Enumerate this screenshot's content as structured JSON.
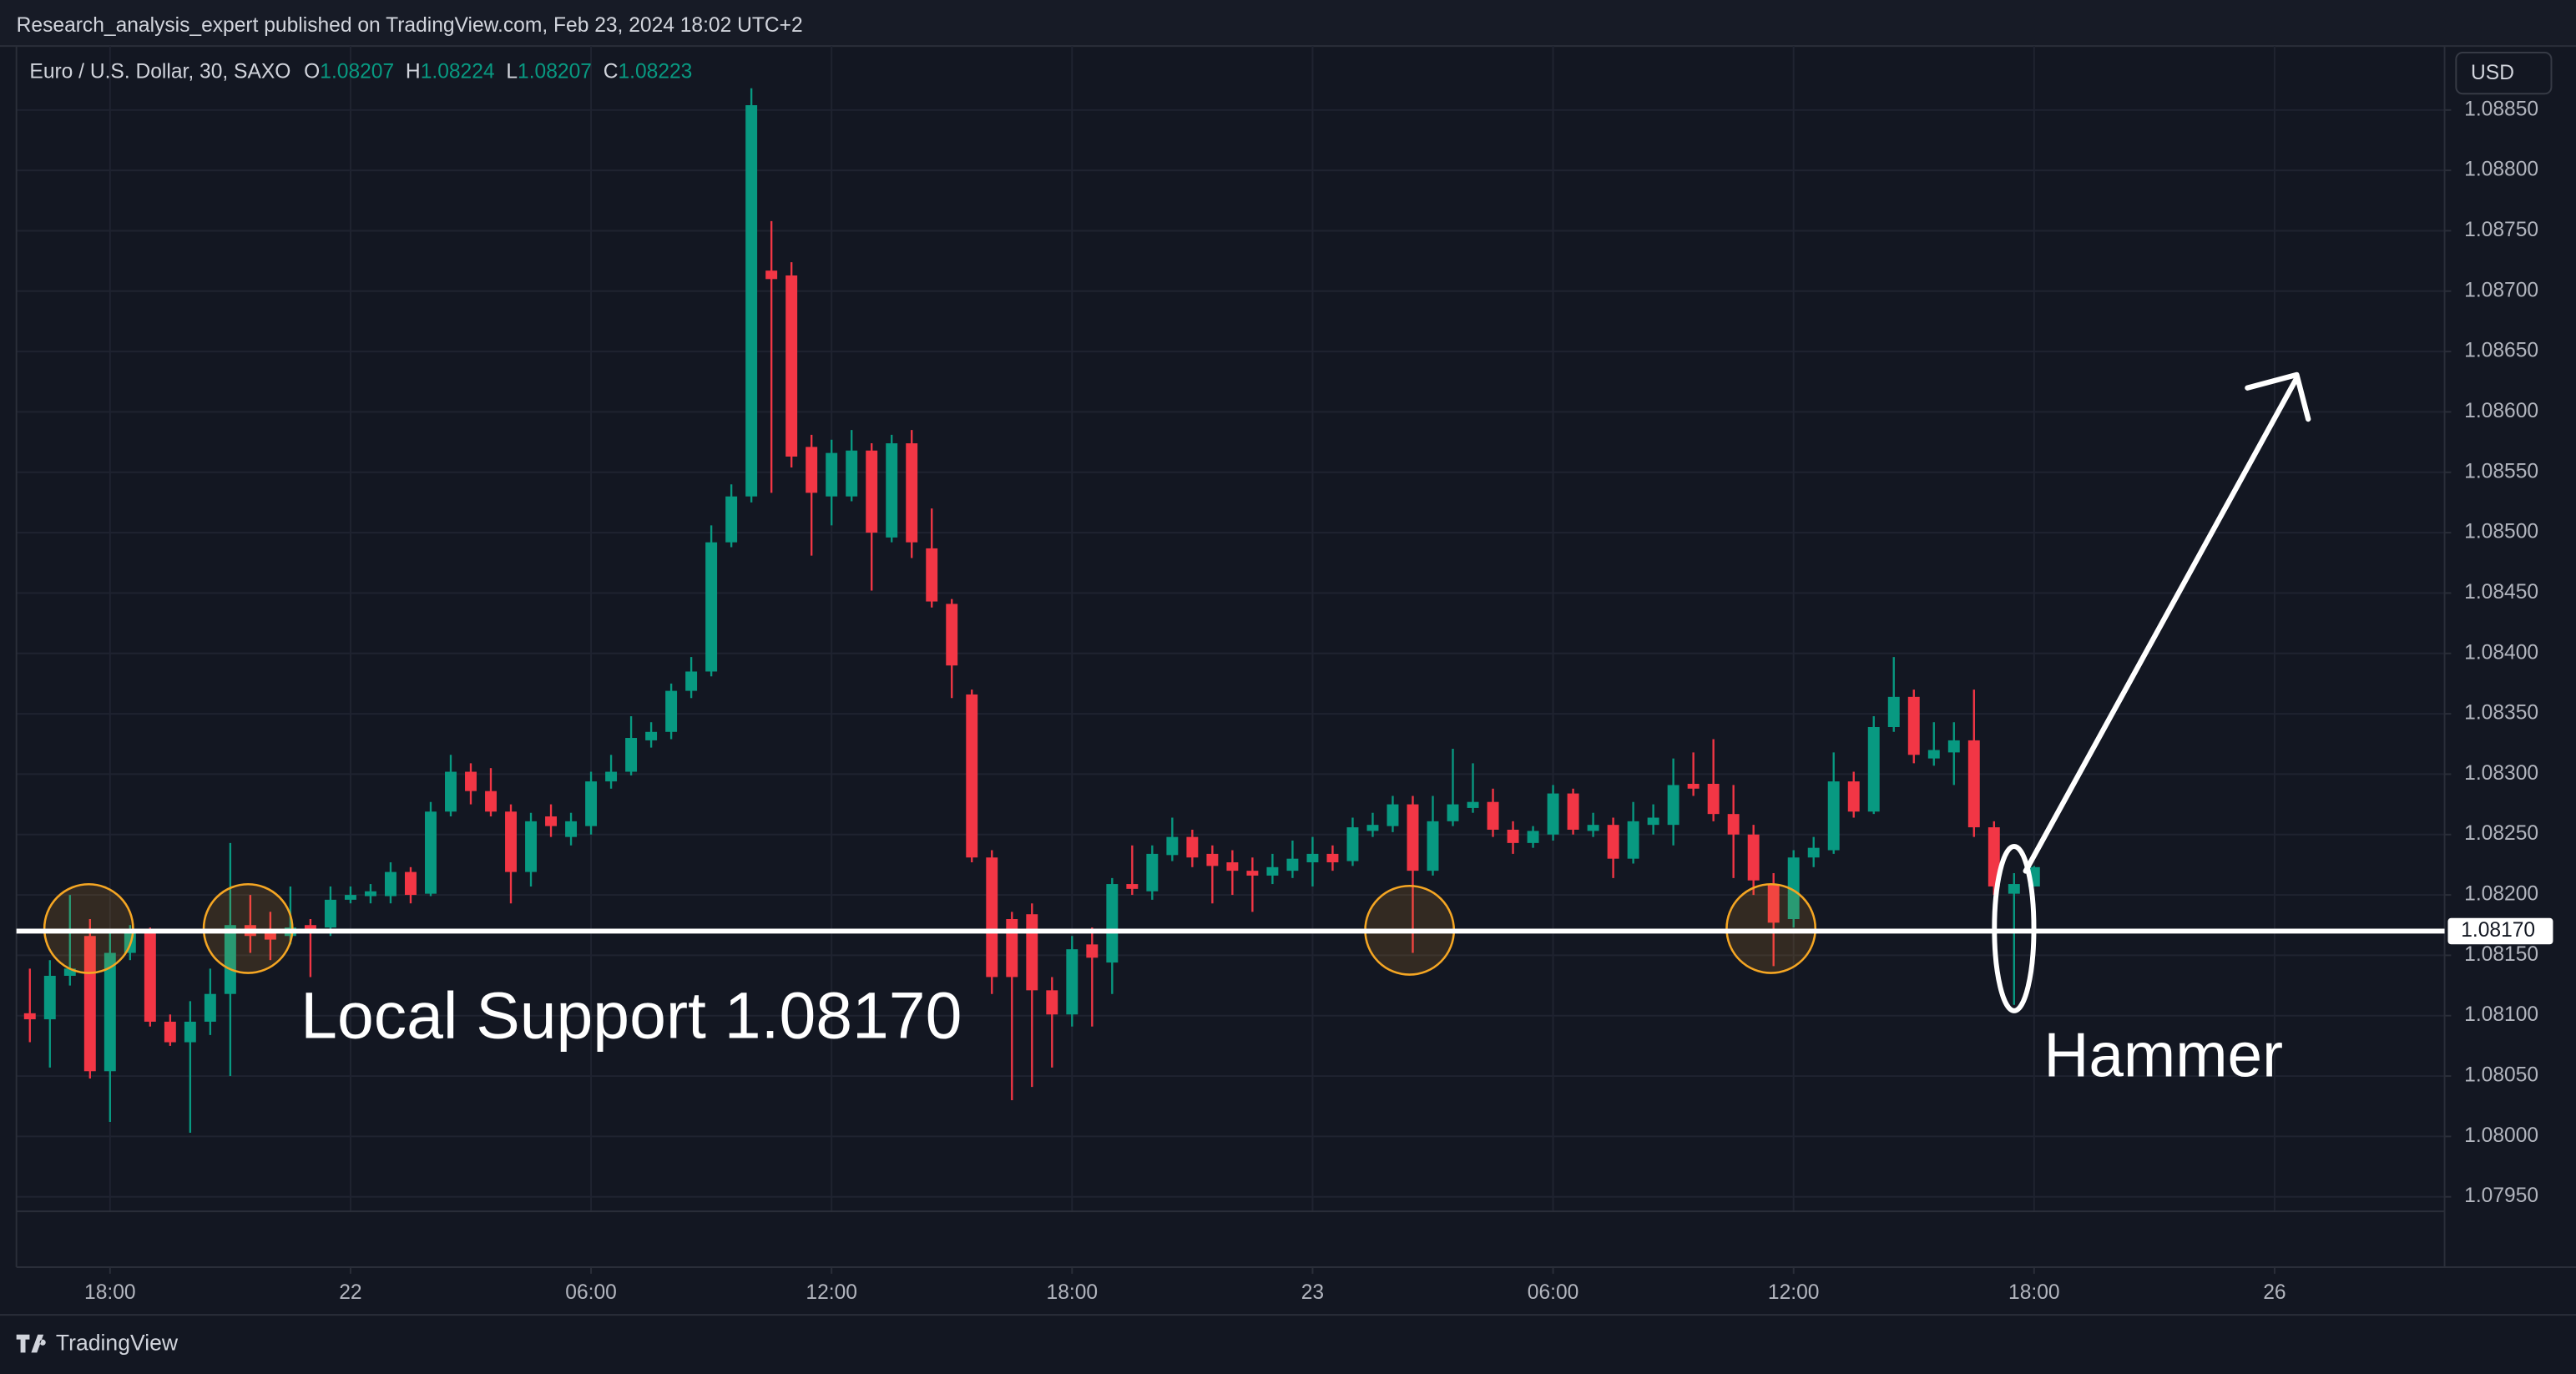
{
  "header": {
    "published": "Research_analysis_expert published on TradingView.com, Feb 23, 2024 18:02 UTC+2"
  },
  "footer": {
    "brand": "TradingView"
  },
  "chart_data": {
    "type": "candlestick",
    "symbol": "Euro / U.S. Dollar, 30, SAXO",
    "ohlc_labels": [
      "O",
      "H",
      "L",
      "C"
    ],
    "currency": "USD",
    "up_color": "#089981",
    "down_color": "#f23645",
    "grid": true,
    "open": [
      1.08102,
      1.08097,
      1.08133,
      1.08166,
      1.08054,
      1.08152,
      1.08169,
      1.08095,
      1.08078,
      1.08095,
      1.08118,
      1.08175,
      1.08169,
      1.08166,
      1.08175,
      1.08173,
      1.08196,
      1.08199,
      1.08199,
      1.08219,
      1.08201,
      1.08269,
      1.08302,
      1.08286,
      1.08269,
      1.08219,
      1.08265,
      1.08248,
      1.08257,
      1.08294,
      1.08302,
      1.08328,
      1.08335,
      1.08369,
      1.08385,
      1.08492,
      1.0853,
      1.08717,
      1.08713,
      1.08571,
      1.0853,
      1.0853,
      1.08568,
      1.08496,
      1.08574,
      1.08487,
      1.08441,
      1.08366,
      1.08231,
      1.0818,
      1.08184,
      1.08121,
      1.08101,
      1.08159,
      1.08144,
      1.08209,
      1.08203,
      1.08233,
      1.08248,
      1.08234,
      1.08227,
      1.0822,
      1.08216,
      1.0822,
      1.08227,
      1.08234,
      1.08228,
      1.08253,
      1.08257,
      1.08275,
      1.0822,
      1.08261,
      1.08272,
      1.08277,
      1.08254,
      1.08243,
      1.0825,
      1.08284,
      1.08253,
      1.08258,
      1.0823,
      1.08258,
      1.08258,
      1.08292,
      1.08292,
      1.08267,
      1.0825,
      1.08209,
      1.0818,
      1.08231,
      1.08237,
      1.08294,
      1.08269,
      1.08339,
      1.08364,
      1.08313,
      1.08318,
      1.08328,
      1.08256,
      1.08201,
      1.08207
    ],
    "high": [
      1.08139,
      1.08146,
      1.082,
      1.0818,
      1.08169,
      1.08175,
      1.08173,
      1.08101,
      1.08112,
      1.08139,
      1.08243,
      1.082,
      1.08186,
      1.08207,
      1.0818,
      1.08207,
      1.08207,
      1.08209,
      1.08227,
      1.08223,
      1.08277,
      1.08316,
      1.08309,
      1.08305,
      1.08275,
      1.08268,
      1.08275,
      1.08268,
      1.08302,
      1.08316,
      1.08348,
      1.08343,
      1.08375,
      1.08397,
      1.08506,
      1.0854,
      1.08868,
      1.08758,
      1.08724,
      1.08581,
      1.08577,
      1.08585,
      1.08574,
      1.08581,
      1.08585,
      1.0852,
      1.08445,
      1.0837,
      1.08237,
      1.08186,
      1.08193,
      1.08132,
      1.08166,
      1.08173,
      1.08214,
      1.08241,
      1.08241,
      1.08264,
      1.08254,
      1.08241,
      1.08237,
      1.08231,
      1.08234,
      1.08245,
      1.08248,
      1.08241,
      1.08264,
      1.08268,
      1.08282,
      1.08282,
      1.08282,
      1.08321,
      1.08309,
      1.08288,
      1.08261,
      1.08257,
      1.08291,
      1.08288,
      1.08268,
      1.08264,
      1.08277,
      1.08275,
      1.08313,
      1.08318,
      1.08329,
      1.08291,
      1.08258,
      1.08218,
      1.08237,
      1.08248,
      1.08318,
      1.08302,
      1.08348,
      1.08397,
      1.0837,
      1.08343,
      1.08343,
      1.0837,
      1.08261,
      1.08218,
      1.08224
    ],
    "low": [
      1.08078,
      1.08057,
      1.08125,
      1.08048,
      1.08012,
      1.08146,
      1.08091,
      1.08075,
      1.08003,
      1.08084,
      1.0805,
      1.08152,
      1.08146,
      1.08159,
      1.08132,
      1.08166,
      1.08193,
      1.08193,
      1.08193,
      1.08193,
      1.08199,
      1.08265,
      1.08275,
      1.08265,
      1.08193,
      1.08207,
      1.08248,
      1.08241,
      1.0825,
      1.08288,
      1.08299,
      1.08322,
      1.08329,
      1.08363,
      1.08381,
      1.08488,
      1.08525,
      1.08533,
      1.08554,
      1.08481,
      1.08506,
      1.08526,
      1.08452,
      1.08492,
      1.08479,
      1.08438,
      1.08363,
      1.08227,
      1.08118,
      1.0803,
      1.08041,
      1.08057,
      1.08091,
      1.08091,
      1.08118,
      1.082,
      1.08196,
      1.08228,
      1.08223,
      1.08193,
      1.082,
      1.08186,
      1.08209,
      1.08214,
      1.08207,
      1.0822,
      1.08224,
      1.08248,
      1.08252,
      1.08152,
      1.08216,
      1.08257,
      1.08268,
      1.08248,
      1.08234,
      1.08239,
      1.08245,
      1.0825,
      1.08248,
      1.08214,
      1.08226,
      1.0825,
      1.08241,
      1.08282,
      1.08261,
      1.08214,
      1.082,
      1.08141,
      1.08173,
      1.08223,
      1.08234,
      1.08264,
      1.08267,
      1.08335,
      1.08309,
      1.08307,
      1.08291,
      1.08248,
      1.082,
      1.08109,
      1.08207
    ],
    "close": [
      1.08097,
      1.08133,
      1.08139,
      1.08054,
      1.08152,
      1.08169,
      1.08095,
      1.08078,
      1.08095,
      1.08118,
      1.08175,
      1.08166,
      1.08163,
      1.08173,
      1.08169,
      1.08196,
      1.082,
      1.08203,
      1.08219,
      1.082,
      1.08269,
      1.08302,
      1.08286,
      1.08269,
      1.08219,
      1.08261,
      1.08257,
      1.08261,
      1.08294,
      1.08302,
      1.0833,
      1.08335,
      1.08369,
      1.08385,
      1.08492,
      1.0853,
      1.08854,
      1.0871,
      1.08563,
      1.08533,
      1.08566,
      1.08568,
      1.085,
      1.08574,
      1.08492,
      1.08443,
      1.0839,
      1.08231,
      1.08132,
      1.08132,
      1.08121,
      1.08101,
      1.08155,
      1.08148,
      1.08209,
      1.08205,
      1.08234,
      1.08248,
      1.08231,
      1.08224,
      1.0822,
      1.08216,
      1.08223,
      1.0823,
      1.08234,
      1.08227,
      1.08256,
      1.08258,
      1.08275,
      1.0822,
      1.08261,
      1.08275,
      1.08277,
      1.08254,
      1.08243,
      1.08253,
      1.08284,
      1.08254,
      1.08258,
      1.0823,
      1.08261,
      1.08264,
      1.08291,
      1.08288,
      1.08267,
      1.0825,
      1.08212,
      1.08177,
      1.08231,
      1.08239,
      1.08294,
      1.08269,
      1.08339,
      1.08364,
      1.08316,
      1.0832,
      1.08328,
      1.08256,
      1.08207,
      1.08209,
      1.08223
    ],
    "xlim": [
      -0.67,
      120.48
    ],
    "xticks": [
      {
        "value": 4,
        "label": "18:00"
      },
      {
        "value": 16,
        "label": "22"
      },
      {
        "value": 28,
        "label": "06:00"
      },
      {
        "value": 40,
        "label": "12:00"
      },
      {
        "value": 52,
        "label": "18:00"
      },
      {
        "value": 64,
        "label": "23"
      },
      {
        "value": 76,
        "label": "06:00"
      },
      {
        "value": 88,
        "label": "12:00"
      },
      {
        "value": 100,
        "label": "18:00"
      },
      {
        "value": 112,
        "label": "26"
      }
    ],
    "ylim": [
      1.07938,
      1.08903
    ],
    "yticks": [
      {
        "value": 1.0795,
        "label": "1.07950"
      },
      {
        "value": 1.08,
        "label": "1.08000"
      },
      {
        "value": 1.0805,
        "label": "1.08050"
      },
      {
        "value": 1.081,
        "label": "1.08100"
      },
      {
        "value": 1.0815,
        "label": "1.08150"
      },
      {
        "value": 1.082,
        "label": "1.08200"
      },
      {
        "value": 1.0825,
        "label": "1.08250"
      },
      {
        "value": 1.083,
        "label": "1.08300"
      },
      {
        "value": 1.0835,
        "label": "1.08350"
      },
      {
        "value": 1.084,
        "label": "1.08400"
      },
      {
        "value": 1.0845,
        "label": "1.08450"
      },
      {
        "value": 1.085,
        "label": "1.08500"
      },
      {
        "value": 1.0855,
        "label": "1.08550"
      },
      {
        "value": 1.086,
        "label": "1.08600"
      },
      {
        "value": 1.0865,
        "label": "1.08650"
      },
      {
        "value": 1.087,
        "label": "1.08700"
      },
      {
        "value": 1.0875,
        "label": "1.08750"
      },
      {
        "value": 1.088,
        "label": "1.08800"
      },
      {
        "value": 1.0885,
        "label": "1.08850"
      }
    ],
    "support": {
      "value": 1.0817,
      "label": "1.08170"
    },
    "annotations": {
      "support_text": "Local Support 1.08170",
      "pattern_text": "Hammer"
    }
  }
}
